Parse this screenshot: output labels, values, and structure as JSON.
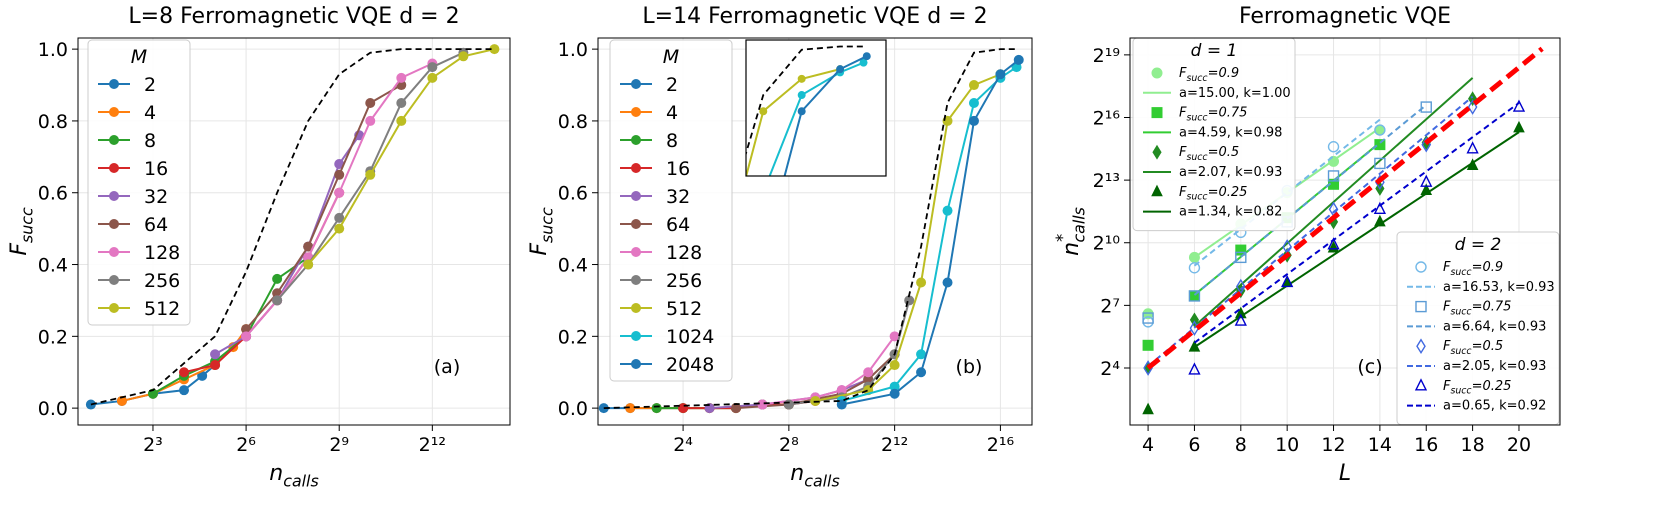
{
  "chart_data": [
    {
      "type": "line",
      "title": "L=8 Ferromagnetic VQE d = 2",
      "xlabel": {
        "text": "n",
        "sub": "calls"
      },
      "ylabel": {
        "text": "F",
        "sub": "succ"
      },
      "xscale": "log",
      "xlim": [
        1.5,
        23200
      ],
      "xticks": [
        {
          "value": 8,
          "label": "2³"
        },
        {
          "value": 64,
          "label": "2⁶"
        },
        {
          "value": 512,
          "label": "2⁹"
        },
        {
          "value": 4096,
          "label": "2¹²"
        }
      ],
      "ylim": [
        -0.047,
        1.031
      ],
      "yticks": [
        {
          "value": 0,
          "label": "0.0"
        },
        0.2,
        0.4,
        0.6,
        0.8,
        {
          "value": 1,
          "label": "1.0"
        }
      ],
      "grid": true,
      "legend_title": "M",
      "annotation": "(a)",
      "series": [
        {
          "name": "2",
          "color": "#1f77b4",
          "x": [
            2,
            4,
            8,
            16,
            24,
            32
          ],
          "values": [
            0.01,
            0.02,
            0.04,
            0.05,
            0.09,
            0.12
          ]
        },
        {
          "name": "4",
          "color": "#ff7f0e",
          "x": [
            4,
            8,
            16,
            32,
            48,
            64
          ],
          "values": [
            0.02,
            0.04,
            0.08,
            0.12,
            0.17,
            0.22
          ]
        },
        {
          "name": "8",
          "color": "#2ca02c",
          "x": [
            8,
            16,
            32,
            64,
            128,
            256
          ],
          "values": [
            0.04,
            0.09,
            0.13,
            0.2,
            0.36,
            0.42
          ]
        },
        {
          "name": "16",
          "color": "#d62728",
          "x": [
            16,
            32,
            64,
            128,
            256,
            512
          ],
          "values": [
            0.1,
            0.12,
            0.2,
            0.3,
            0.42,
            0.6
          ]
        },
        {
          "name": "32",
          "color": "#9467bd",
          "x": [
            32,
            64,
            128,
            256,
            512,
            800
          ],
          "values": [
            0.15,
            0.2,
            0.3,
            0.45,
            0.68,
            0.76
          ]
        },
        {
          "name": "64",
          "color": "#8c564b",
          "x": [
            64,
            128,
            256,
            512,
            1024,
            2048
          ],
          "values": [
            0.22,
            0.32,
            0.45,
            0.65,
            0.85,
            0.9
          ]
        },
        {
          "name": "128",
          "color": "#e377c2",
          "x": [
            64,
            128,
            256,
            512,
            1024,
            2048,
            4096
          ],
          "values": [
            0.2,
            0.3,
            0.42,
            0.6,
            0.8,
            0.92,
            0.96
          ]
        },
        {
          "name": "256",
          "color": "#7f7f7f",
          "x": [
            128,
            256,
            512,
            1024,
            2048,
            4096,
            8192
          ],
          "values": [
            0.3,
            0.4,
            0.53,
            0.66,
            0.85,
            0.95,
            0.99
          ]
        },
        {
          "name": "512",
          "color": "#bcbd22",
          "x": [
            256,
            512,
            1024,
            2048,
            4096,
            8192,
            16384
          ],
          "values": [
            0.4,
            0.5,
            0.65,
            0.8,
            0.92,
            0.98,
            1.0
          ]
        },
        {
          "color": "#000000",
          "style": "dashed",
          "x": [
            2,
            8,
            32,
            64,
            128,
            256,
            512,
            1024,
            2048,
            4096,
            16384
          ],
          "values": [
            0.01,
            0.05,
            0.2,
            0.38,
            0.6,
            0.8,
            0.93,
            0.99,
            1,
            1,
            1
          ]
        }
      ]
    },
    {
      "type": "line",
      "title": "L=14 Ferromagnetic VQE d = 2",
      "xlabel": {
        "text": "n",
        "sub": "calls"
      },
      "ylabel": {
        "text": "F",
        "sub": "succ"
      },
      "xscale": "log",
      "xlim": [
        1.72,
        150000
      ],
      "xticks": [
        {
          "value": 16,
          "label": "2⁴"
        },
        {
          "value": 256,
          "label": "2⁸"
        },
        {
          "value": 4096,
          "label": "2¹²"
        },
        {
          "value": 65536,
          "label": "2¹⁶"
        }
      ],
      "ylim": [
        -0.047,
        1.031
      ],
      "yticks": [
        {
          "value": 0,
          "label": "0.0"
        },
        0.2,
        0.4,
        0.6,
        0.8,
        {
          "value": 1,
          "label": "1.0"
        }
      ],
      "grid": true,
      "legend_title": "M",
      "annotation": "(b)",
      "inset": {
        "xlim": [
          12000,
          150000
        ],
        "ylim": [
          0.6,
          1.02
        ]
      },
      "series": [
        {
          "name": "2",
          "color": "#1f77b4",
          "x": [
            2,
            4,
            8,
            16
          ],
          "values": [
            0,
            0,
            0,
            0
          ]
        },
        {
          "name": "4",
          "color": "#ff7f0e",
          "x": [
            4,
            8,
            16,
            32,
            64
          ],
          "values": [
            0,
            0,
            0,
            0,
            0
          ]
        },
        {
          "name": "8",
          "color": "#2ca02c",
          "x": [
            8,
            16,
            32,
            64,
            128,
            256
          ],
          "values": [
            0,
            0,
            0,
            0,
            0.01,
            0.01
          ]
        },
        {
          "name": "16",
          "color": "#d62728",
          "x": [
            16,
            32,
            64,
            128,
            256,
            512
          ],
          "values": [
            0,
            0,
            0,
            0.01,
            0.01,
            0.02
          ]
        },
        {
          "name": "32",
          "color": "#9467bd",
          "x": [
            32,
            128,
            512,
            1024,
            2048
          ],
          "values": [
            0,
            0.01,
            0.03,
            0.05,
            0.08
          ]
        },
        {
          "name": "64",
          "color": "#8c564b",
          "x": [
            64,
            256,
            1024,
            2048,
            4096
          ],
          "values": [
            0,
            0.01,
            0.04,
            0.08,
            0.15
          ]
        },
        {
          "name": "128",
          "color": "#e377c2",
          "x": [
            128,
            512,
            1024,
            2048,
            4096
          ],
          "values": [
            0.01,
            0.03,
            0.05,
            0.1,
            0.2
          ]
        },
        {
          "name": "256",
          "color": "#7f7f7f",
          "x": [
            256,
            1024,
            2048,
            4096,
            6000
          ],
          "values": [
            0.01,
            0.03,
            0.06,
            0.15,
            0.3
          ]
        },
        {
          "name": "512",
          "color": "#bcbd22",
          "x": [
            512,
            2048,
            4096,
            8192,
            16384,
            32768,
            65536
          ],
          "values": [
            0.02,
            0.05,
            0.12,
            0.35,
            0.8,
            0.9,
            0.93
          ]
        },
        {
          "name": "1024",
          "color": "#17becf",
          "x": [
            1024,
            4096,
            8192,
            16384,
            32768,
            65536,
            100000
          ],
          "values": [
            0.02,
            0.06,
            0.15,
            0.55,
            0.85,
            0.92,
            0.95
          ]
        },
        {
          "name": "2048",
          "color": "#1f77b4",
          "x": [
            1024,
            4096,
            8192,
            16384,
            32768,
            65536,
            106000
          ],
          "values": [
            0.01,
            0.04,
            0.1,
            0.35,
            0.8,
            0.93,
            0.97
          ]
        },
        {
          "color": "#000000",
          "style": "dashed",
          "x": [
            2,
            1024,
            2048,
            4096,
            8192,
            16384,
            32768,
            65536,
            106000
          ],
          "values": [
            0,
            0.02,
            0.05,
            0.15,
            0.45,
            0.85,
            0.99,
            1,
            1
          ]
        }
      ]
    },
    {
      "type": "scatter",
      "title": "Ferromagnetic VQE",
      "xlabel": {
        "text": "L"
      },
      "ylabel": {
        "text": "n",
        "sup": "*",
        "sub": "calls"
      },
      "xlim": [
        3.22,
        21.77
      ],
      "xticks": [
        4,
        6,
        8,
        10,
        12,
        14,
        16,
        18,
        20
      ],
      "yscale": "log",
      "ylim": [
        2.41,
        918000
      ],
      "yticks": [
        {
          "value": 16,
          "label": "2⁴"
        },
        {
          "value": 128,
          "label": "2⁷"
        },
        {
          "value": 1024,
          "label": "2¹⁰"
        },
        {
          "value": 8192,
          "label": "2¹³"
        },
        {
          "value": 65536,
          "label": "2¹⁶"
        },
        {
          "value": 524288,
          "label": "2¹⁹"
        }
      ],
      "grid": true,
      "annotation": "(c)",
      "groups": [
        {
          "title": "d = 1",
          "series": [
            {
              "name": {
                "text": "F",
                "sub": "succ",
                "rest": "=0.9"
              },
              "marker": "circle",
              "filled": true,
              "color": "#90ee90",
              "x": [
                4,
                6,
                8,
                10,
                12,
                14
              ],
              "values": [
                97,
                630,
                1911,
                5405,
                15287,
                43238
              ]
            },
            {
              "name": "a=15.00, k=1.00",
              "style": "solid",
              "color": "#90ee90",
              "x": [
                6,
                14
              ],
              "values": [
                630,
                46341
              ]
            },
            {
              "name": {
                "text": "F",
                "sub": "succ",
                "rest": "=0.75"
              },
              "marker": "square",
              "filled": true,
              "color": "#32cd32",
              "x": [
                4,
                6,
                8,
                10,
                12,
                14
              ],
              "values": [
                34,
                175,
                803,
                2353,
                7132,
                26616
              ]
            },
            {
              "name": "a=4.59, k=0.98",
              "style": "solid",
              "color": "#32cd32",
              "x": [
                6,
                14
              ],
              "values": [
                181,
                28526
              ]
            },
            {
              "name": {
                "text": "F",
                "sub": "succ",
                "rest": "=0.5"
              },
              "marker": "diamond",
              "filled": true,
              "color": "#228b22",
              "x": [
                4,
                6,
                8,
                10,
                12,
                14,
                16,
                18
              ],
              "values": [
                16,
                79,
                208,
                676,
                2048,
                6208,
                28526,
                122247
              ]
            },
            {
              "name": "a=2.07, k=0.93",
              "style": "solid",
              "color": "#228b22",
              "x": [
                6,
                18
              ],
              "values": [
                64,
                244495
              ]
            },
            {
              "name": {
                "text": "F",
                "sub": "succ",
                "rest": "=0.25"
              },
              "marker": "triangle",
              "filled": true,
              "color": "#006400",
              "x": [
                4,
                6,
                8,
                10,
                12,
                14,
                16,
                18,
                20
              ],
              "values": [
                4,
                32,
                97,
                274,
                861,
                2048,
                5793,
                13308,
                46341
              ]
            },
            {
              "name": "a=1.34, k=0.82",
              "style": "solid",
              "color": "#006400",
              "x": [
                6,
                20
              ],
              "values": [
                32,
                40342
              ]
            }
          ]
        },
        {
          "title": "d = 2",
          "series": [
            {
              "name": {
                "text": "F",
                "sub": "succ",
                "rest": "=0.9"
              },
              "marker": "circle",
              "filled": false,
              "color": "#74b9e8",
              "x": [
                4,
                6,
                8,
                10,
                12,
                14
              ],
              "values": [
                74,
                446,
                1448,
                5793,
                24834,
                43238
              ]
            },
            {
              "name": "a=16.53, k=0.93",
              "style": "dashed",
              "color": "#74b9e8",
              "x": [
                6,
                14
              ],
              "values": [
                478,
                61147
              ]
            },
            {
              "name": {
                "text": "F",
                "sub": "succ",
                "rest": "=0.75"
              },
              "marker": "square",
              "filled": false,
              "color": "#5b9bd5",
              "x": [
                4,
                6,
                8,
                10,
                12,
                14,
                16
              ],
              "values": [
                84,
                175,
                630,
                2048,
                9410,
                14263,
                92682
              ]
            },
            {
              "name": "a=6.64, k=0.93",
              "style": "dashed",
              "color": "#5b9bd5",
              "x": [
                6,
                16
              ],
              "values": [
                181,
                99334
              ]
            },
            {
              "name": {
                "text": "F",
                "sub": "succ",
                "rest": "=0.5"
              },
              "marker": "diamond",
              "filled": false,
              "color": "#4169e1",
              "x": [
                4,
                6,
                8,
                10,
                12,
                14,
                16,
                18
              ],
              "values": [
                16,
                60,
                239,
                891,
                3104,
                7643,
                26616,
                92682
              ]
            },
            {
              "name": "a=2.05, k=0.93",
              "style": "dashed",
              "color": "#4169e1",
              "x": [
                4,
                18
              ],
              "values": [
                17,
                131072
              ]
            },
            {
              "name": {
                "text": "F",
                "sub": "succ",
                "rest": "=0.25"
              },
              "marker": "triangle",
              "filled": false,
              "color": "#0000cd",
              "x": [
                6,
                8,
                10,
                12,
                14,
                16,
                18,
                20
              ],
              "values": [
                15,
                76,
                274,
                955,
                3104,
                7643,
                23170,
                92682
              ]
            },
            {
              "name": "a=0.65, k=0.92",
              "style": "dashed",
              "color": "#0000cd",
              "x": [
                6,
                20
              ],
              "values": [
                37,
                106464
              ]
            }
          ]
        }
      ],
      "series": [
        {
          "color": "#ff0000",
          "style": "dashed",
          "x": [
            4,
            21
          ],
          "values": [
            16,
            644000
          ]
        }
      ]
    }
  ]
}
